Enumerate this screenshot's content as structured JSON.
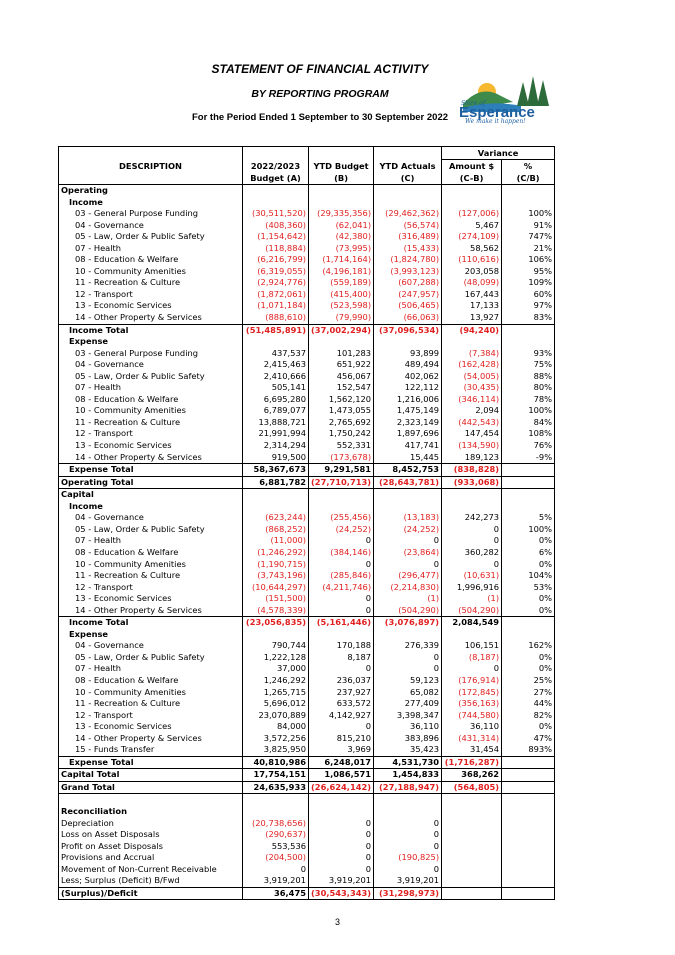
{
  "header": {
    "title": "STATEMENT OF FINANCIAL ACTIVITY",
    "subtitle": "BY REPORTING PROGRAM",
    "period": "For the Period Ended 1 September to 30 September 2022"
  },
  "logo": {
    "small_text": "Shire of",
    "name": "Esperance",
    "tagline": "We make it happen!"
  },
  "columns": {
    "description": "DESCRIPTION",
    "budget": "2022/2023",
    "budget2": "Budget (A)",
    "ytd_budget": "YTD Budget",
    "ytd_budget2": "(B)",
    "ytd_actuals": "YTD Actuals",
    "ytd_actuals2": "(C)",
    "variance": "Variance",
    "amount": "Amount $",
    "amount2": "(C-B)",
    "pct": "%",
    "pct2": "(C/B)"
  },
  "rows": [
    [
      "Operating",
      "",
      "",
      "",
      "",
      "",
      "sec"
    ],
    [
      "Income",
      "",
      "",
      "",
      "",
      "",
      "sub"
    ],
    [
      "03 - General Purpose Funding",
      "(30,511,520)",
      "(29,335,356)",
      "(29,462,362)",
      "(127,006)",
      "100%",
      "item"
    ],
    [
      "04 - Governance",
      "(408,360)",
      "(62,041)",
      "(56,574)",
      "5,467",
      "91%",
      "item"
    ],
    [
      "05 - Law, Order & Public Safety",
      "(1,154,642)",
      "(42,380)",
      "(316,489)",
      "(274,109)",
      "747%",
      "item"
    ],
    [
      "07 - Health",
      "(118,884)",
      "(73,995)",
      "(15,433)",
      "58,562",
      "21%",
      "item"
    ],
    [
      "08 - Education & Welfare",
      "(6,216,799)",
      "(1,714,164)",
      "(1,824,780)",
      "(110,616)",
      "106%",
      "item"
    ],
    [
      "10 - Community Amenities",
      "(6,319,055)",
      "(4,196,181)",
      "(3,993,123)",
      "203,058",
      "95%",
      "item"
    ],
    [
      "11 - Recreation & Culture",
      "(2,924,776)",
      "(559,189)",
      "(607,288)",
      "(48,099)",
      "109%",
      "item"
    ],
    [
      "12 - Transport",
      "(1,872,061)",
      "(415,400)",
      "(247,957)",
      "167,443",
      "60%",
      "item"
    ],
    [
      "13 - Economic Services",
      "(1,071,184)",
      "(523,598)",
      "(506,465)",
      "17,133",
      "97%",
      "item"
    ],
    [
      "14 - Other Property & Services",
      "(888,610)",
      "(79,990)",
      "(66,063)",
      "13,927",
      "83%",
      "item"
    ],
    [
      "Income  Total",
      "(51,485,891)",
      "(37,002,294)",
      "(37,096,534)",
      "(94,240)",
      "",
      "total"
    ],
    [
      "Expense",
      "",
      "",
      "",
      "",
      "",
      "sub"
    ],
    [
      "03 - General Purpose Funding",
      "437,537",
      "101,283",
      "93,899",
      "(7,384)",
      "93%",
      "item"
    ],
    [
      "04 - Governance",
      "2,415,463",
      "651,922",
      "489,494",
      "(162,428)",
      "75%",
      "item"
    ],
    [
      "05 - Law, Order & Public Safety",
      "2,410,666",
      "456,067",
      "402,062",
      "(54,005)",
      "88%",
      "item"
    ],
    [
      "07 - Health",
      "505,141",
      "152,547",
      "122,112",
      "(30,435)",
      "80%",
      "item"
    ],
    [
      "08 - Education & Welfare",
      "6,695,280",
      "1,562,120",
      "1,216,006",
      "(346,114)",
      "78%",
      "item"
    ],
    [
      "10 - Community Amenities",
      "6,789,077",
      "1,473,055",
      "1,475,149",
      "2,094",
      "100%",
      "item"
    ],
    [
      "11 - Recreation & Culture",
      "13,888,721",
      "2,765,692",
      "2,323,149",
      "(442,543)",
      "84%",
      "item"
    ],
    [
      "12 - Transport",
      "21,991,994",
      "1,750,242",
      "1,897,696",
      "147,454",
      "108%",
      "item"
    ],
    [
      "13 - Economic Services",
      "2,314,294",
      "552,331",
      "417,741",
      "(134,590)",
      "76%",
      "item"
    ],
    [
      "14 - Other Property & Services",
      "919,500",
      "(173,678)",
      "15,445",
      "189,123",
      "-9%",
      "item"
    ],
    [
      "Expense  Total",
      "58,367,673",
      "9,291,581",
      "8,452,753",
      "(838,828)",
      "",
      "total"
    ],
    [
      "Operating  Total",
      "6,881,782",
      "(27,710,713)",
      "(28,643,781)",
      "(933,068)",
      "",
      "grand"
    ],
    [
      "Capital",
      "",
      "",
      "",
      "",
      "",
      "sec"
    ],
    [
      "Income",
      "",
      "",
      "",
      "",
      "",
      "sub"
    ],
    [
      "04 - Governance",
      "(623,244)",
      "(255,456)",
      "(13,183)",
      "242,273",
      "5%",
      "item"
    ],
    [
      "05 - Law, Order & Public Safety",
      "(868,252)",
      "(24,252)",
      "(24,252)",
      "0",
      "100%",
      "item"
    ],
    [
      "07 - Health",
      "(11,000)",
      "0",
      "0",
      "0",
      "0%",
      "item"
    ],
    [
      "08 - Education & Welfare",
      "(1,246,292)",
      "(384,146)",
      "(23,864)",
      "360,282",
      "6%",
      "item"
    ],
    [
      "10 - Community Amenities",
      "(1,190,715)",
      "0",
      "0",
      "0",
      "0%",
      "item"
    ],
    [
      "11 - Recreation & Culture",
      "(3,743,196)",
      "(285,846)",
      "(296,477)",
      "(10,631)",
      "104%",
      "item"
    ],
    [
      "12 - Transport",
      "(10,644,297)",
      "(4,211,746)",
      "(2,214,830)",
      "1,996,916",
      "53%",
      "item"
    ],
    [
      "13 - Economic Services",
      "(151,500)",
      "0",
      "(1)",
      "(1)",
      "0%",
      "item"
    ],
    [
      "14 - Other Property & Services",
      "(4,578,339)",
      "0",
      "(504,290)",
      "(504,290)",
      "0%",
      "item"
    ],
    [
      "Income  Total",
      "(23,056,835)",
      "(5,161,446)",
      "(3,076,897)",
      "2,084,549",
      "",
      "total"
    ],
    [
      "Expense",
      "",
      "",
      "",
      "",
      "",
      "sub"
    ],
    [
      "04 - Governance",
      "790,744",
      "170,188",
      "276,339",
      "106,151",
      "162%",
      "item"
    ],
    [
      "05 - Law, Order & Public Safety",
      "1,222,128",
      "8,187",
      "0",
      "(8,187)",
      "0%",
      "item"
    ],
    [
      "07 - Health",
      "37,000",
      "0",
      "0",
      "0",
      "0%",
      "item"
    ],
    [
      "08 - Education & Welfare",
      "1,246,292",
      "236,037",
      "59,123",
      "(176,914)",
      "25%",
      "item"
    ],
    [
      "10 - Community Amenities",
      "1,265,715",
      "237,927",
      "65,082",
      "(172,845)",
      "27%",
      "item"
    ],
    [
      "11 - Recreation & Culture",
      "5,696,012",
      "633,572",
      "277,409",
      "(356,163)",
      "44%",
      "item"
    ],
    [
      "12 - Transport",
      "23,070,889",
      "4,142,927",
      "3,398,347",
      "(744,580)",
      "82%",
      "item"
    ],
    [
      "13 - Economic Services",
      "84,000",
      "0",
      "36,110",
      "36,110",
      "0%",
      "item"
    ],
    [
      "14 - Other Property & Services",
      "3,572,256",
      "815,210",
      "383,896",
      "(431,314)",
      "47%",
      "item"
    ],
    [
      "15 - Funds Transfer",
      "3,825,950",
      "3,969",
      "35,423",
      "31,454",
      "893%",
      "item"
    ],
    [
      "Expense  Total",
      "40,810,986",
      "6,248,017",
      "4,531,730",
      "(1,716,287)",
      "",
      "total"
    ],
    [
      "Capital  Total",
      "17,754,151",
      "1,086,571",
      "1,454,833",
      "368,262",
      "",
      "grand"
    ],
    [
      "Grand  Total",
      "24,635,933",
      "(26,624,142)",
      "(27,188,947)",
      "(564,805)",
      "",
      "grand"
    ],
    [
      "",
      "",
      "",
      "",
      "",
      "",
      "blank"
    ],
    [
      "Reconciliation",
      "",
      "",
      "",
      "",
      "",
      "sec"
    ],
    [
      "Depreciation",
      "(20,738,656)",
      "0",
      "0",
      "",
      "",
      "rec"
    ],
    [
      "Loss on Asset Disposals",
      "(290,637)",
      "0",
      "0",
      "",
      "",
      "rec"
    ],
    [
      "Profit on Asset Disposals",
      "553,536",
      "0",
      "0",
      "",
      "",
      "rec"
    ],
    [
      "Provisions and Accrual",
      "(204,500)",
      "0",
      "(190,825)",
      "",
      "",
      "rec"
    ],
    [
      "Movement of Non-Current Receivable",
      "0",
      "0",
      "0",
      "",
      "",
      "rec"
    ],
    [
      "Less; Surplus (Deficit) B/Fwd",
      "3,919,201",
      "3,919,201",
      "3,919,201",
      "",
      "",
      "rec"
    ],
    [
      "(Surplus)/Deficit",
      "36,475",
      "(30,543,343)",
      "(31,298,973)",
      "",
      "",
      "final"
    ]
  ],
  "page_number": "3"
}
